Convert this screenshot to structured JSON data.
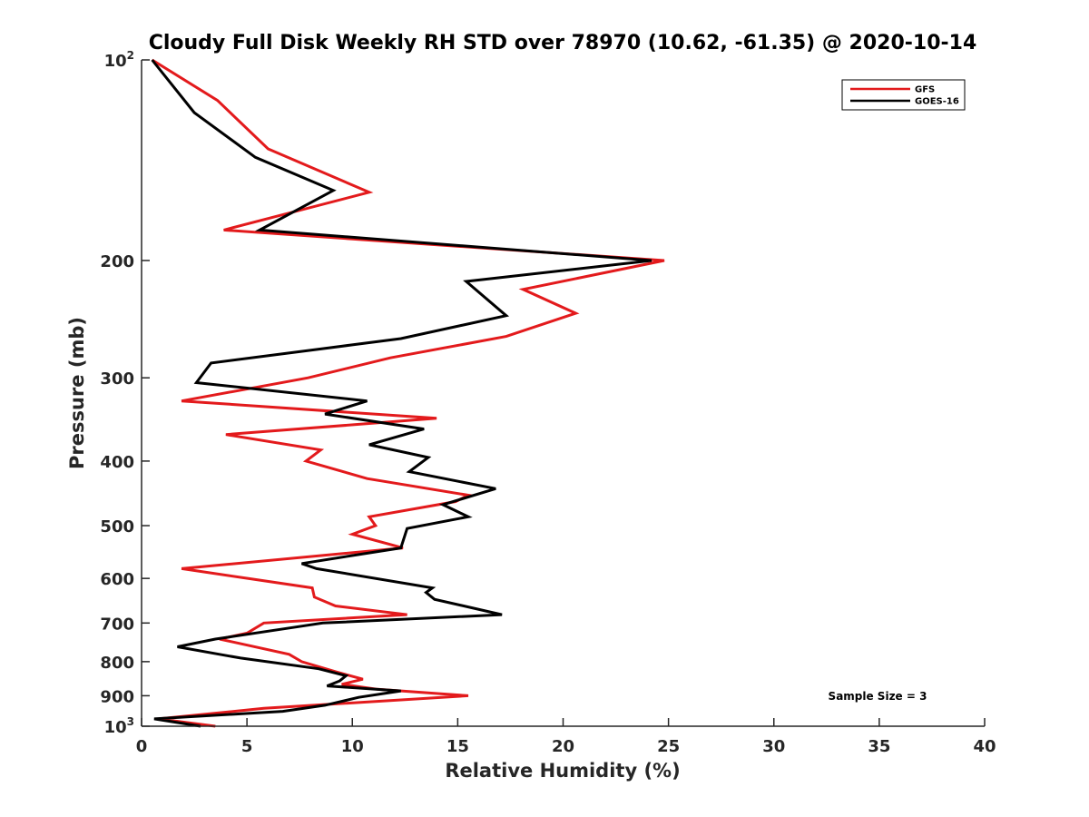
{
  "chart_data": {
    "type": "line",
    "title": "Cloudy Full Disk Weekly RH STD over 78970 (10.62, -61.35) @ 2020-10-14",
    "xlabel": "Relative Humidity (%)",
    "ylabel": "Pressure (mb)",
    "xlim": [
      0,
      40
    ],
    "ylim": [
      100,
      1000
    ],
    "y_scale": "log",
    "y_reversed": true,
    "grid": false,
    "legend_position": "top-right",
    "x_ticks": [
      "0",
      "5",
      "10",
      "15",
      "20",
      "25",
      "30",
      "35",
      "40"
    ],
    "y_ticks": [
      {
        "value": 100,
        "label": "10",
        "sup": "2"
      },
      {
        "value": 200,
        "label": "200",
        "sup": ""
      },
      {
        "value": 300,
        "label": "300",
        "sup": ""
      },
      {
        "value": 400,
        "label": "400",
        "sup": ""
      },
      {
        "value": 500,
        "label": "500",
        "sup": ""
      },
      {
        "value": 600,
        "label": "600",
        "sup": ""
      },
      {
        "value": 700,
        "label": "700",
        "sup": ""
      },
      {
        "value": 800,
        "label": "800",
        "sup": ""
      },
      {
        "value": 900,
        "label": "900",
        "sup": ""
      },
      {
        "value": 1000,
        "label": "10",
        "sup": "3"
      }
    ],
    "annotation": "Sample Size = 3",
    "series": [
      {
        "name": "GFS",
        "color": "#e31a1c",
        "points": [
          [
            0.5,
            100
          ],
          [
            3.6,
            115
          ],
          [
            6.0,
            136
          ],
          [
            10.8,
            158
          ],
          [
            3.9,
            180
          ],
          [
            24.8,
            200
          ],
          [
            18.1,
            221
          ],
          [
            20.6,
            240
          ],
          [
            17.3,
            260
          ],
          [
            11.8,
            280
          ],
          [
            7.9,
            300
          ],
          [
            1.9,
            325
          ],
          [
            14.0,
            345
          ],
          [
            4.0,
            365
          ],
          [
            8.5,
            385
          ],
          [
            7.8,
            400
          ],
          [
            10.7,
            425
          ],
          [
            15.5,
            450
          ],
          [
            14.9,
            460
          ],
          [
            10.8,
            485
          ],
          [
            11.1,
            500
          ],
          [
            10.0,
            515
          ],
          [
            12.4,
            540
          ],
          [
            1.9,
            580
          ],
          [
            8.1,
            620
          ],
          [
            8.2,
            640
          ],
          [
            9.2,
            660
          ],
          [
            12.6,
            680
          ],
          [
            5.8,
            700
          ],
          [
            5.0,
            725
          ],
          [
            3.7,
            740
          ],
          [
            7.0,
            780
          ],
          [
            7.6,
            800
          ],
          [
            9.3,
            830
          ],
          [
            10.5,
            850
          ],
          [
            9.5,
            865
          ],
          [
            11.2,
            880
          ],
          [
            15.5,
            900
          ],
          [
            5.8,
            940
          ],
          [
            0.8,
            975
          ],
          [
            3.5,
            1000
          ]
        ]
      },
      {
        "name": "GOES-16",
        "color": "#000000",
        "points": [
          [
            0.5,
            100
          ],
          [
            2.5,
            120
          ],
          [
            5.4,
            140
          ],
          [
            9.1,
            157
          ],
          [
            5.6,
            180
          ],
          [
            24.2,
            200
          ],
          [
            15.4,
            215
          ],
          [
            17.3,
            242
          ],
          [
            12.3,
            262
          ],
          [
            3.3,
            285
          ],
          [
            2.6,
            305
          ],
          [
            10.7,
            325
          ],
          [
            8.7,
            340
          ],
          [
            13.4,
            358
          ],
          [
            10.8,
            378
          ],
          [
            13.6,
            395
          ],
          [
            12.7,
            415
          ],
          [
            16.8,
            440
          ],
          [
            14.3,
            465
          ],
          [
            15.5,
            485
          ],
          [
            12.6,
            505
          ],
          [
            12.3,
            540
          ],
          [
            7.6,
            570
          ],
          [
            8.3,
            580
          ],
          [
            13.8,
            620
          ],
          [
            13.5,
            630
          ],
          [
            13.9,
            645
          ],
          [
            17.1,
            680
          ],
          [
            8.6,
            700
          ],
          [
            7.3,
            710
          ],
          [
            3.5,
            740
          ],
          [
            1.7,
            760
          ],
          [
            3.7,
            780
          ],
          [
            4.7,
            790
          ],
          [
            8.4,
            820
          ],
          [
            9.7,
            840
          ],
          [
            9.4,
            855
          ],
          [
            8.8,
            870
          ],
          [
            12.3,
            885
          ],
          [
            10.3,
            905
          ],
          [
            8.7,
            930
          ],
          [
            6.7,
            950
          ],
          [
            0.6,
            975
          ],
          [
            2.8,
            1000
          ]
        ]
      }
    ]
  }
}
